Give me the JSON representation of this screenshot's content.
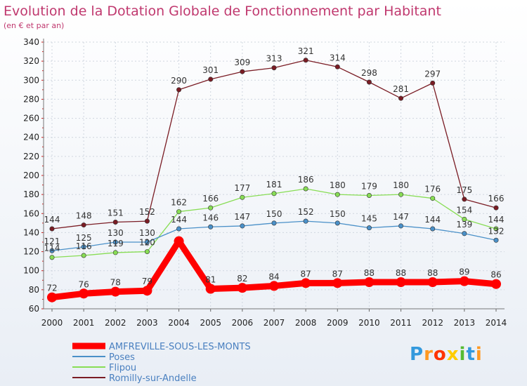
{
  "chart_data": {
    "type": "line",
    "title": "Evolution de la Dotation Globale de Fonctionnement par Habitant",
    "subtitle": "(en € et par an)",
    "xlabel": "",
    "ylabel": "",
    "ylim": [
      60,
      340
    ],
    "yticks": [
      60,
      80,
      100,
      120,
      140,
      160,
      180,
      200,
      220,
      240,
      260,
      280,
      300,
      320,
      340
    ],
    "categories": [
      "2000",
      "2001",
      "2002",
      "2003",
      "2004",
      "2005",
      "2006",
      "2007",
      "2008",
      "2009",
      "2010",
      "2011",
      "2012",
      "2013",
      "2014"
    ],
    "grid": true,
    "legend_position": "bottom-left",
    "series": [
      {
        "name": "AMFREVILLE-SOUS-LES-MONTS",
        "color": "#ff0000",
        "bold": true,
        "values": [
          72,
          76,
          78,
          79,
          131,
          81,
          82,
          84,
          87,
          87,
          88,
          88,
          88,
          89,
          86
        ],
        "labels": [
          "72",
          "76",
          "78",
          "79",
          "",
          "81",
          "82",
          "84",
          "87",
          "87",
          "88",
          "88",
          "88",
          "89",
          "86"
        ]
      },
      {
        "name": "Poses",
        "color": "#4a90c8",
        "bold": false,
        "values": [
          121,
          125,
          130,
          130,
          144,
          146,
          147,
          150,
          152,
          150,
          145,
          147,
          144,
          139,
          132
        ],
        "labels": [
          "121",
          "125",
          "130",
          "130",
          "144",
          "146",
          "147",
          "150",
          "152",
          "150",
          "145",
          "147",
          "144",
          "139",
          "132"
        ]
      },
      {
        "name": "Flipou",
        "color": "#88dd55",
        "bold": false,
        "values": [
          114,
          116,
          119,
          120,
          162,
          166,
          177,
          181,
          186,
          180,
          179,
          180,
          176,
          154,
          144
        ],
        "labels": [
          "114",
          "116",
          "119",
          "120",
          "162",
          "166",
          "177",
          "181",
          "186",
          "180",
          "179",
          "180",
          "176",
          "154",
          "144"
        ]
      },
      {
        "name": "Romilly-sur-Andelle",
        "color": "#7a1c24",
        "bold": false,
        "values": [
          144,
          148,
          151,
          152,
          290,
          301,
          309,
          313,
          321,
          314,
          298,
          281,
          297,
          175,
          166
        ],
        "labels": [
          "144",
          "148",
          "151",
          "152",
          "290",
          "301",
          "309",
          "313",
          "321",
          "314",
          "298",
          "281",
          "297",
          "175",
          "166"
        ]
      }
    ]
  },
  "logo": {
    "text": "Proxiti",
    "letters": [
      "P",
      "r",
      "o",
      "x",
      "i",
      "t",
      "i"
    ],
    "letter_colors": [
      "#3399dd",
      "#ff9922",
      "#ff3300",
      "#ffcc00",
      "#55bb33",
      "#3399dd",
      "#ff9922"
    ]
  }
}
